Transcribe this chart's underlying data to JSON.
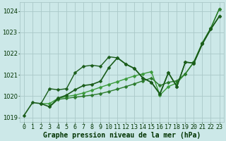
{
  "xlim": [
    -0.5,
    23.5
  ],
  "ylim": [
    1018.8,
    1024.4
  ],
  "xticks": [
    0,
    1,
    2,
    3,
    4,
    5,
    6,
    7,
    8,
    9,
    10,
    11,
    12,
    13,
    14,
    15,
    16,
    17,
    18,
    19,
    20,
    21,
    22,
    23
  ],
  "yticks": [
    1019,
    1020,
    1021,
    1022,
    1023,
    1024
  ],
  "xlabel": "Graphe pression niveau de la mer (hPa)",
  "bg_color": "#cce8e8",
  "grid_color": "#aac8c8",
  "xlabel_color": "#003300",
  "tick_label_color": "#003300",
  "xlabel_fontsize": 7.0,
  "tick_fontsize": 6.0,
  "line1_x": [
    0,
    1,
    2,
    3,
    4,
    5,
    6,
    7,
    8,
    9,
    10,
    11,
    12,
    13,
    14,
    15,
    16,
    17,
    18,
    19,
    20,
    21,
    22,
    23
  ],
  "line1_y": [
    1019.1,
    1019.7,
    1019.65,
    1019.5,
    1019.9,
    1020.05,
    1020.3,
    1020.5,
    1020.55,
    1020.7,
    1021.35,
    1021.8,
    1021.5,
    1021.3,
    1020.85,
    1020.65,
    1020.1,
    1021.1,
    1020.45,
    1021.6,
    1021.55,
    1022.45,
    1023.15,
    1023.75
  ],
  "line2_x": [
    2,
    3,
    4,
    5,
    6,
    7,
    8,
    9,
    10,
    11,
    12,
    13,
    14,
    15,
    16,
    17,
    18,
    19,
    20,
    21,
    22,
    23
  ],
  "line2_y": [
    1019.65,
    1020.35,
    1020.3,
    1020.35,
    1021.1,
    1021.4,
    1021.45,
    1021.4,
    1021.85,
    1021.8,
    1021.5,
    1021.3,
    1020.85,
    1020.65,
    1020.1,
    1021.1,
    1020.45,
    1021.6,
    1021.55,
    1022.45,
    1023.15,
    1023.75
  ],
  "line3_x": [
    2,
    3,
    4,
    5,
    6,
    7,
    8,
    9,
    10,
    11,
    12,
    13,
    14,
    15,
    16,
    17,
    18,
    19,
    20,
    21,
    22,
    23
  ],
  "line3_y": [
    1019.65,
    1019.65,
    1019.9,
    1019.98,
    1020.05,
    1020.15,
    1020.28,
    1020.42,
    1020.55,
    1020.68,
    1020.82,
    1020.95,
    1021.05,
    1021.15,
    1020.05,
    1020.45,
    1020.62,
    1021.05,
    1021.6,
    1022.5,
    1023.2,
    1024.1
  ],
  "line4_x": [
    3,
    4,
    5,
    6,
    7,
    8,
    9,
    10,
    11,
    12,
    13,
    14,
    15,
    16,
    17,
    18,
    19,
    20,
    21,
    22,
    23
  ],
  "line4_y": [
    1019.5,
    1019.85,
    1019.9,
    1019.95,
    1020.0,
    1020.05,
    1020.12,
    1020.22,
    1020.33,
    1020.45,
    1020.58,
    1020.72,
    1020.85,
    1020.5,
    1020.65,
    1020.72,
    1021.05,
    1021.6,
    1022.5,
    1023.2,
    1024.1
  ],
  "col_dark": "#1a5c1a",
  "col_mid": "#2a7a2a",
  "col_light": "#3a9a3a"
}
